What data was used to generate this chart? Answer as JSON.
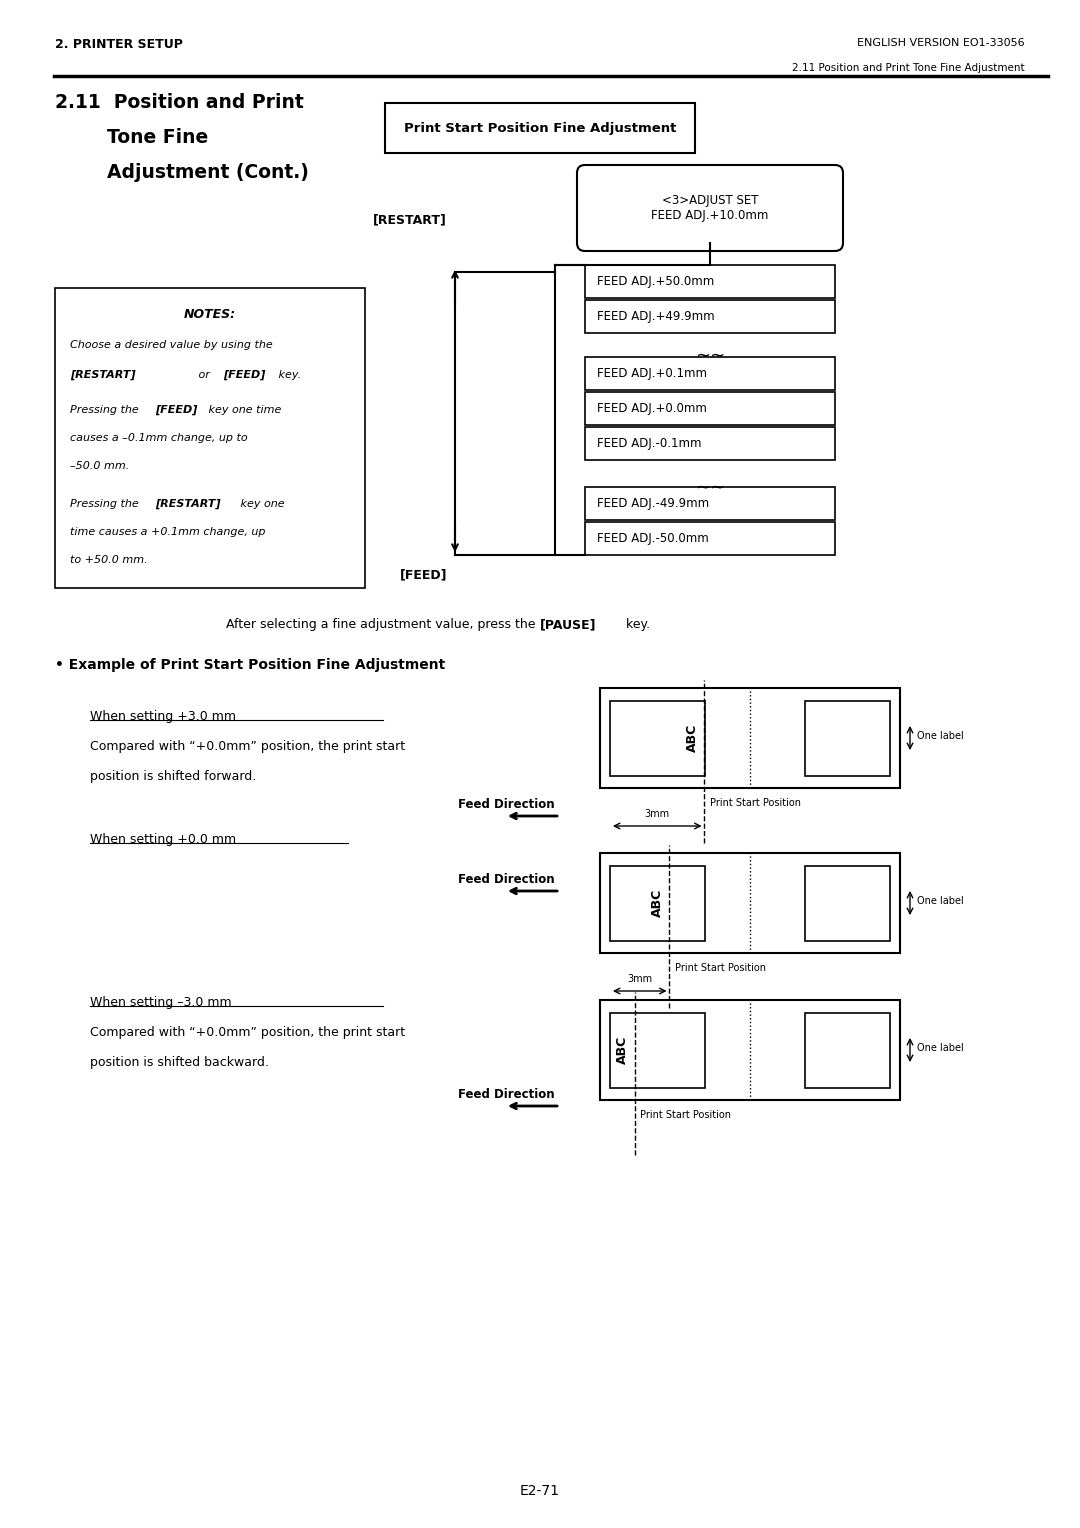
{
  "page_title_left": "2. PRINTER SETUP",
  "page_title_right": "ENGLISH VERSION EO1-33056",
  "page_subtitle_right": "2.11 Position and Print Tone Fine Adjustment",
  "section_title_line1": "2.11  Position and Print",
  "box_title": "Print Start Position Fine Adjustment",
  "adjust_set_box": "<3>ADJUST SET\nFEED ADJ.+10.0mm",
  "feed_adj_boxes": [
    "FEED ADJ.+50.0mm",
    "FEED ADJ.+49.9mm",
    "FEED ADJ.+0.1mm",
    "FEED ADJ.+0.0mm",
    "FEED ADJ.-0.1mm",
    "FEED ADJ.-49.9mm",
    "FEED ADJ.-50.0mm"
  ],
  "restart_label": "[RESTART]",
  "feed_label": "[FEED]",
  "notes_title": "NOTES:",
  "pause_text": "After selecting a fine adjustment value, press the [PAUSE] key.",
  "example_title": "• Example of Print Start Position Fine Adjustment",
  "when_plus3": "When setting +3.0 mm",
  "when_zero": "When setting +0.0 mm",
  "when_minus3": "When setting –3.0 mm",
  "feed_dir": "Feed Direction",
  "one_label": "One label",
  "print_start_pos": "Print Start Position",
  "3mm": "3mm",
  "page_num": "E2-71",
  "bg_color": "#ffffff",
  "text_color": "#000000"
}
